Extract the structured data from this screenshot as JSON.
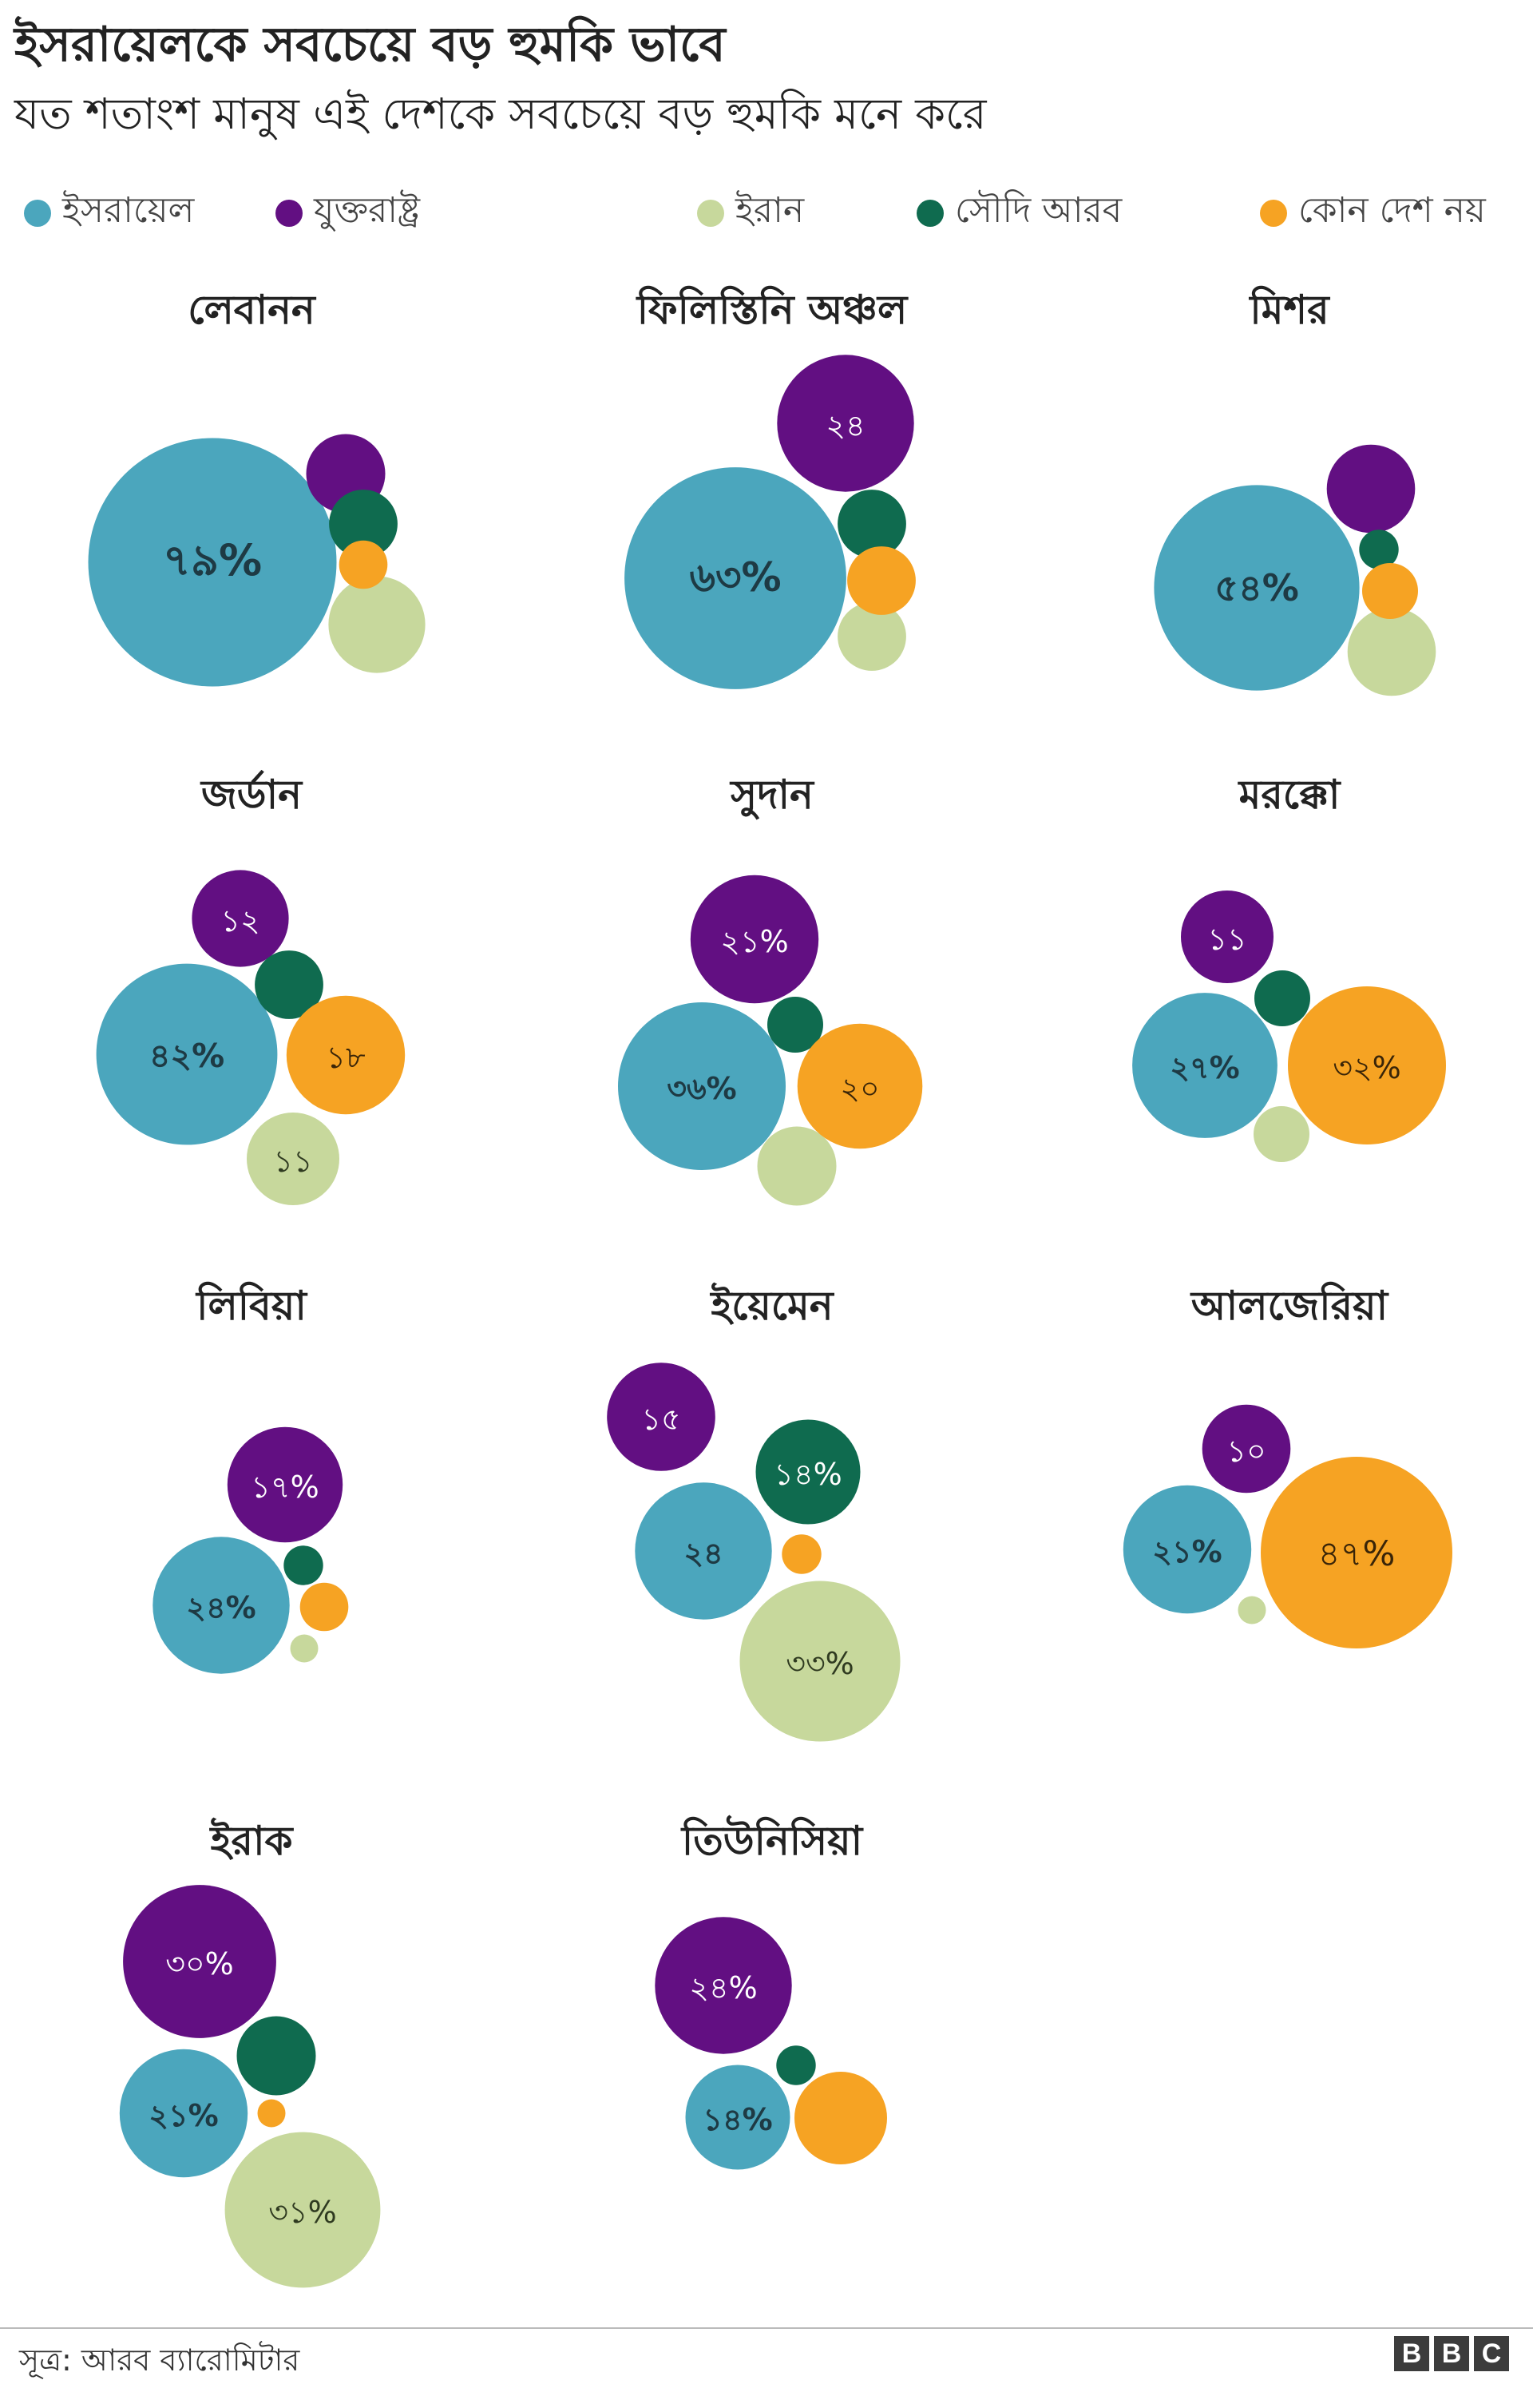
{
  "header": {
    "title": "ইসরায়েলকে সবচেয়ে বড় হুমকি ভাবে",
    "subtitle": "যত শতাংশ মানুষ এই দেশকে সবচেয়ে বড় হুমকি মনে করে"
  },
  "legend": [
    {
      "key": "israel",
      "label": "ইসরায়েল",
      "color": "#4ba6bd"
    },
    {
      "key": "usa",
      "label": "যুক্তরাষ্ট্র",
      "color": "#620f82"
    },
    {
      "key": "iran",
      "label": "ইরান",
      "color": "#c7d89c"
    },
    {
      "key": "saudi",
      "label": "সৌদি আরব",
      "color": "#0f6b4f"
    },
    {
      "key": "none",
      "label": "কোন দেশ নয়",
      "color": "#f6a323"
    }
  ],
  "chart_data": {
    "type": "bubble-cluster",
    "series_keys": [
      "israel",
      "usa",
      "iran",
      "saudi",
      "none"
    ],
    "panels": [
      {
        "country": "লেবানন",
        "values": {
          "israel": 79,
          "usa": 8,
          "saudi": 6,
          "none": 3,
          "iran": 12
        },
        "labels": {
          "israel": "৭৯%"
        }
      },
      {
        "country": "ফিলিস্তিনি অঞ্চল",
        "values": {
          "israel": 63,
          "usa": 24,
          "saudi": 6,
          "none": 6,
          "iran": 6
        },
        "labels": {
          "israel": "৬৩%",
          "usa": "২৪"
        }
      },
      {
        "country": "মিশর",
        "values": {
          "israel": 54,
          "usa": 10,
          "saudi": 2,
          "none": 4,
          "iran": 10
        },
        "labels": {
          "israel": "৫৪%"
        }
      },
      {
        "country": "জর্ডান",
        "values": {
          "israel": 42,
          "usa": 12,
          "saudi": 6,
          "none": 18,
          "iran": 11
        },
        "labels": {
          "israel": "৪২%",
          "usa": "১২",
          "none": "১৮",
          "iran": "১১"
        }
      },
      {
        "country": "সুদান",
        "values": {
          "israel": 36,
          "usa": 21,
          "saudi": 4,
          "none": 20,
          "iran": 8
        },
        "labels": {
          "israel": "৩৬%",
          "usa": "২১%",
          "none": "২০"
        }
      },
      {
        "country": "মরক্কো",
        "values": {
          "israel": 27,
          "usa": 11,
          "saudi": 4,
          "none": 32,
          "iran": 4
        },
        "labels": {
          "israel": "২৭%",
          "usa": "১১",
          "none": "৩২%"
        }
      },
      {
        "country": "লিবিয়া",
        "values": {
          "israel": 24,
          "usa": 17,
          "saudi": 2,
          "none": 3,
          "iran": 1
        },
        "labels": {
          "israel": "২৪%",
          "usa": "১৭%"
        }
      },
      {
        "country": "ইয়েমেন",
        "values": {
          "israel": 24,
          "usa": 15,
          "saudi": 14,
          "none": 2,
          "iran": 33
        },
        "labels": {
          "israel": "২৪",
          "usa": "১৫",
          "saudi": "১৪%",
          "iran": "৩৩%"
        }
      },
      {
        "country": "আলজেরিয়া",
        "values": {
          "israel": 21,
          "usa": 10,
          "saudi": 0,
          "none": 47,
          "iran": 1
        },
        "labels": {
          "israel": "২১%",
          "usa": "১০",
          "none": "৪৭%"
        }
      },
      {
        "country": "ইরাক",
        "values": {
          "israel": 21,
          "usa": 30,
          "saudi": 8,
          "none": 1,
          "iran": 31
        },
        "labels": {
          "israel": "২১%",
          "usa": "৩০%",
          "iran": "৩১%"
        }
      },
      {
        "country": "তিউনিসিয়া",
        "values": {
          "israel": 14,
          "usa": 24,
          "saudi": 2,
          "none": 11,
          "iran": 0
        },
        "labels": {
          "israel": "১৪%",
          "usa": "২৪%"
        }
      }
    ]
  },
  "footer": {
    "source": "সূত্র: আরব ব্যারোমিটার",
    "logo_letters": [
      "B",
      "B",
      "C"
    ]
  }
}
